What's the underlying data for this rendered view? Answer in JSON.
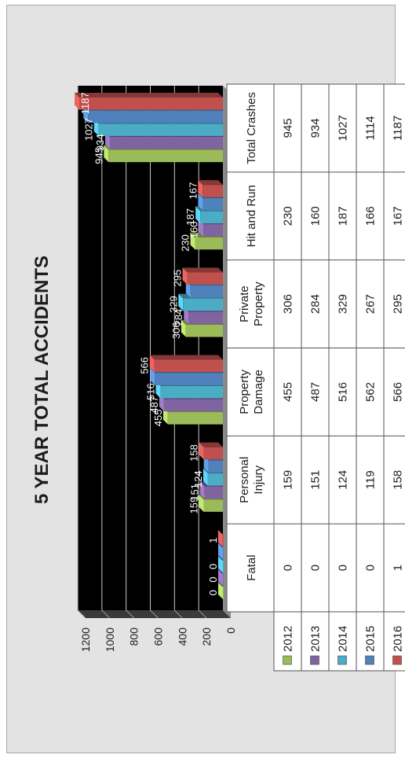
{
  "chart_data": {
    "type": "bar",
    "title": "5 YEAR TOTAL ACCIDENTS",
    "categories": [
      "Fatal",
      "Personal Injury",
      "Property Damage",
      "Private Property",
      "Hit and Run",
      "Total Crashes"
    ],
    "series": [
      {
        "name": "2012",
        "color": "#9bbb59",
        "values": [
          0,
          159,
          455,
          306,
          230,
          945
        ]
      },
      {
        "name": "2013",
        "color": "#8064a2",
        "values": [
          0,
          151,
          487,
          284,
          160,
          934
        ]
      },
      {
        "name": "2014",
        "color": "#4bacc6",
        "values": [
          0,
          124,
          516,
          329,
          187,
          1027
        ]
      },
      {
        "name": "2015",
        "color": "#4f81bd",
        "values": [
          0,
          119,
          562,
          267,
          166,
          1114
        ]
      },
      {
        "name": "2016",
        "color": "#c0504d",
        "values": [
          1,
          158,
          566,
          295,
          167,
          1187
        ]
      }
    ],
    "yticks": [
      "0",
      "200",
      "400",
      "600",
      "800",
      "1000",
      "1200"
    ],
    "ylim": [
      0,
      1200
    ],
    "grid": true,
    "plot_background": "#000000",
    "data_labels": {
      "Fatal": [
        "0",
        "0",
        "0",
        "",
        "1"
      ],
      "Personal Injury": [
        "159",
        "151",
        "124",
        "",
        "158"
      ],
      "Property Damage": [
        "455",
        "487",
        "516",
        "",
        "566"
      ],
      "Private Property": [
        "306",
        "284",
        "329",
        "",
        "295"
      ],
      "Hit and Run": [
        "230",
        "160",
        "187",
        "",
        "167"
      ],
      "Total Crashes": [
        "945",
        "934",
        "1027",
        "",
        "1187"
      ]
    },
    "data_table": true
  }
}
